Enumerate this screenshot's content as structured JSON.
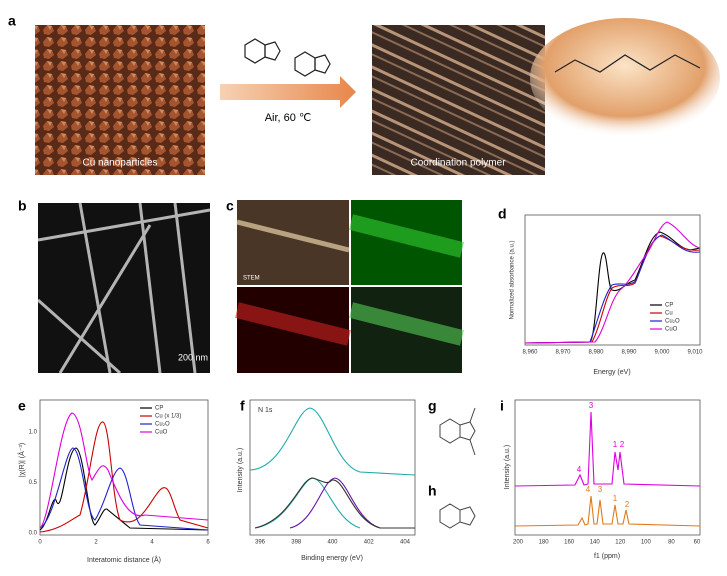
{
  "panels": {
    "a": {
      "label": "a",
      "left_caption": "Cu nanoparticles",
      "condition": "Air, 60 ℃",
      "right_caption": "Coordination polymer"
    },
    "b": {
      "label": "b",
      "scale_bar": "200 nm"
    },
    "c": {
      "label": "c",
      "tile_label": "STEM"
    },
    "d": {
      "label": "d",
      "y_label": "Normalized absorbance (a.u.)",
      "x_label": "Energy (eV)",
      "x_ticks": [
        "8,960",
        "8,970",
        "8,980",
        "8,990",
        "9,000",
        "9,010"
      ],
      "legend": [
        "CP",
        "Cu",
        "Cu₂O",
        "CuO"
      ]
    },
    "e": {
      "label": "e",
      "y_label": "|χ(R)| (Å⁻³)",
      "x_label": "Interatomic distance (Å)",
      "y_ticks": [
        "0.0",
        "0.5",
        "1.0"
      ],
      "x_ticks": [
        "0",
        "2",
        "4",
        "6"
      ],
      "legend": [
        "CP",
        "Cu (x 1/3)",
        "Cu₂O",
        "CuO"
      ]
    },
    "f": {
      "label": "f",
      "annotation": "N 1s",
      "y_label": "Intensity (a.u.)",
      "x_label": "Binding energy (eV)",
      "x_ticks": [
        "396",
        "398",
        "400",
        "402",
        "404"
      ]
    },
    "g": {
      "label": "g"
    },
    "h": {
      "label": "h"
    },
    "i": {
      "label": "i",
      "y_label": "Intensity (a.u.)",
      "x_label": "f1 (ppm)",
      "x_ticks": [
        "200",
        "180",
        "160",
        "140",
        "120",
        "100",
        "80",
        "60"
      ],
      "peaks_top": [
        "4",
        "3",
        "1",
        "2"
      ],
      "peaks_bottom": [
        "4",
        "3",
        "1",
        "2"
      ]
    }
  }
}
